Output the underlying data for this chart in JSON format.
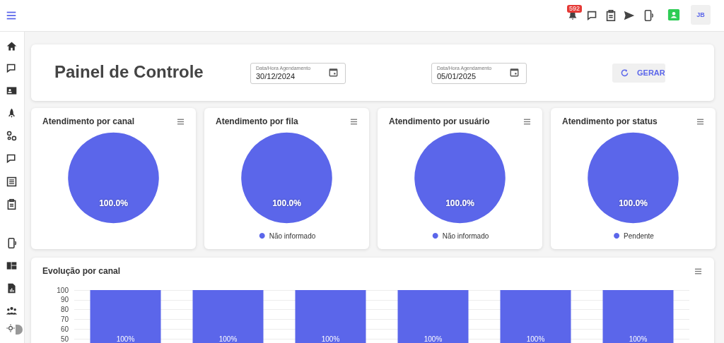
{
  "chart_data": [
    {
      "type": "other",
      "title": "Painel de Controle",
      "annotations": [
        "Data/Hora Agendamento",
        "30/12/2024",
        "Data/Hora Agendamento",
        "05/01/2025",
        "GERAR",
        "592",
        "JB"
      ]
    },
    {
      "type": "pie",
      "title": "Atendimento por canal",
      "categories": [
        null
      ],
      "values": [
        100
      ],
      "colors": [
        "#5b66ea"
      ],
      "value_labels": [
        "100.0%"
      ]
    },
    {
      "type": "pie",
      "title": "Atendimento por fila",
      "categories": [
        "Não informado"
      ],
      "values": [
        100
      ],
      "colors": [
        "#5b66ea"
      ],
      "value_labels": [
        "100.0%"
      ],
      "legend": "bottom"
    },
    {
      "type": "pie",
      "title": "Atendimento por usuário",
      "categories": [
        "Não informado"
      ],
      "values": [
        100
      ],
      "colors": [
        "#5b66ea"
      ],
      "value_labels": [
        "100.0%"
      ],
      "legend": "bottom"
    },
    {
      "type": "pie",
      "title": "Atendimento por status",
      "categories": [
        "Pendente"
      ],
      "values": [
        100
      ],
      "colors": [
        "#5b66ea"
      ],
      "value_labels": [
        "100.0%"
      ],
      "legend": "bottom"
    },
    {
      "type": "bar",
      "title": "Evolução por canal",
      "categories": [
        null,
        null,
        null,
        null,
        null,
        null
      ],
      "values": [
        100,
        100,
        100,
        100,
        100,
        100
      ],
      "color": "#5b66ea",
      "value_labels": [
        "100%",
        "100%",
        "100%",
        "100%",
        "100%",
        "100%"
      ],
      "ylim": [
        0,
        100
      ],
      "yticks": [
        50,
        60,
        70,
        80,
        90,
        100
      ],
      "grid": "y"
    }
  ]
}
